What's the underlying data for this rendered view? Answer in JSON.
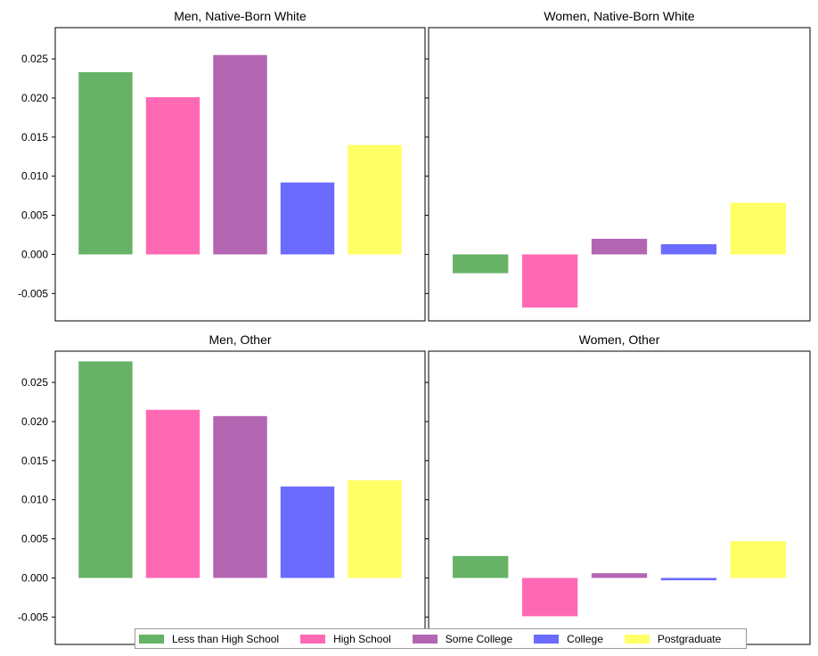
{
  "chart_data": {
    "type": "bar",
    "categories": [
      "Less than High School",
      "High School",
      "Some College",
      "College",
      "Postgraduate"
    ],
    "colors": [
      "#66b266",
      "#ff69b4",
      "#b266b2",
      "#6b6bff",
      "#ffff66"
    ],
    "ylim": [
      -0.0085,
      0.029
    ],
    "yticks": [
      "-0.005",
      "0.000",
      "0.005",
      "0.010",
      "0.015",
      "0.020",
      "0.025"
    ],
    "ytick_values": [
      -0.005,
      0.0,
      0.005,
      0.01,
      0.015,
      0.02,
      0.025
    ],
    "legend_position": "bottom-center",
    "panels": [
      {
        "title": "Men, Native-Born White",
        "values": [
          0.0233,
          0.0201,
          0.0255,
          0.0092,
          0.014
        ]
      },
      {
        "title": "Women, Native-Born White",
        "values": [
          -0.0024,
          -0.0068,
          0.002,
          0.0013,
          0.0066
        ]
      },
      {
        "title": "Men, Other",
        "values": [
          0.0277,
          0.0215,
          0.0207,
          0.0117,
          0.0125
        ]
      },
      {
        "title": "Women, Other",
        "values": [
          0.0028,
          -0.0049,
          0.0006,
          -0.0003,
          0.0047
        ]
      }
    ]
  }
}
